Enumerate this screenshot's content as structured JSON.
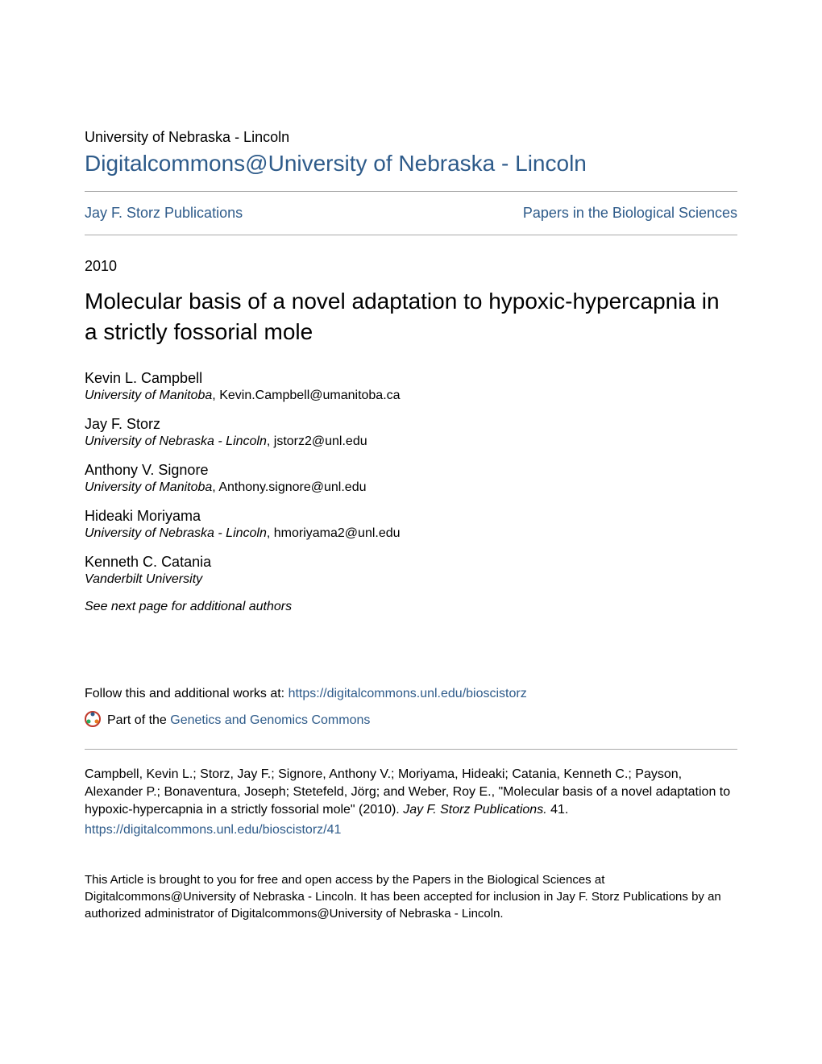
{
  "header": {
    "institution": "University of Nebraska - Lincoln",
    "site_title": "Digitalcommons@University of Nebraska - Lincoln"
  },
  "nav": {
    "left": "Jay F. Storz Publications",
    "right": "Papers in the Biological Sciences"
  },
  "year": "2010",
  "title": "Molecular basis of a novel adaptation to hypoxic-hypercapnia in a strictly fossorial mole",
  "authors": [
    {
      "name": "Kevin L. Campbell",
      "institution": "University of Manitoba",
      "email": "Kevin.Campbell@umanitoba.ca"
    },
    {
      "name": "Jay F. Storz",
      "institution": "University of Nebraska - Lincoln",
      "email": "jstorz2@unl.edu"
    },
    {
      "name": "Anthony V. Signore",
      "institution": "University of Manitoba",
      "email": "Anthony.signore@unl.edu"
    },
    {
      "name": "Hideaki Moriyama",
      "institution": "University of Nebraska - Lincoln",
      "email": "hmoriyama2@unl.edu"
    },
    {
      "name": "Kenneth C. Catania",
      "institution": "Vanderbilt University",
      "email": ""
    }
  ],
  "additional_authors_note": "See next page for additional authors",
  "follow": {
    "prefix": "Follow this and additional works at: ",
    "url": "https://digitalcommons.unl.edu/bioscistorz"
  },
  "part_of": {
    "prefix": "Part of the ",
    "commons": "Genetics and Genomics Commons"
  },
  "citation": {
    "authors": "Campbell, Kevin L.; Storz, Jay F.; Signore, Anthony V.; Moriyama, Hideaki; Catania, Kenneth C.; Payson, Alexander P.; Bonaventura, Joseph; Stetefeld, Jörg; and Weber, Roy E., ",
    "title": "\"Molecular basis of a novel adaptation to hypoxic-hypercapnia in a strictly fossorial mole\" (2010). ",
    "journal": "Jay F. Storz Publications.",
    "number": " 41.",
    "link": "https://digitalcommons.unl.edu/bioscistorz/41"
  },
  "rights": "This Article is brought to you for free and open access by the Papers in the Biological Sciences at Digitalcommons@University of Nebraska - Lincoln. It has been accepted for inclusion in Jay F. Storz Publications by an authorized administrator of Digitalcommons@University of Nebraska - Lincoln.",
  "colors": {
    "link": "#2e5b8a",
    "text": "#000000",
    "divider": "#aaaaaa",
    "background": "#ffffff"
  },
  "typography": {
    "body_font": "Arial, Helvetica, sans-serif",
    "institution_size": 18,
    "site_title_size": 28,
    "nav_size": 18,
    "article_title_size": 28,
    "author_name_size": 18,
    "body_size": 16
  }
}
